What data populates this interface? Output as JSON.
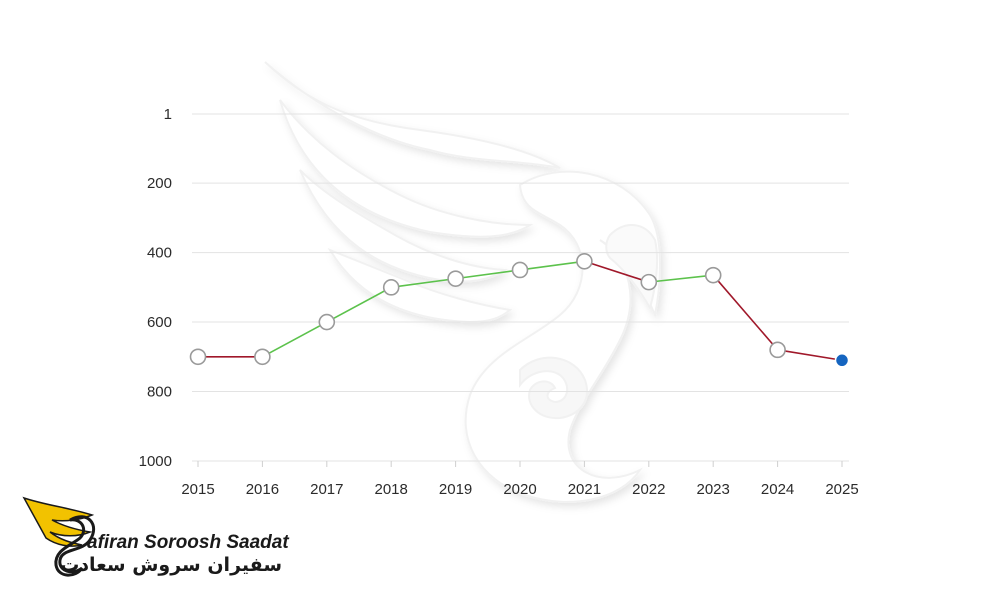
{
  "chart_data": {
    "type": "line",
    "x": [
      "2015",
      "2016",
      "2017",
      "2018",
      "2019",
      "2020",
      "2021",
      "2022",
      "2023",
      "2024",
      "2025"
    ],
    "values": [
      700,
      700,
      600,
      500,
      475,
      450,
      425,
      485,
      465,
      680,
      710
    ],
    "ylim": [
      1,
      1000
    ],
    "y_inverted": true,
    "yticks": [
      "1",
      "200",
      "400",
      "600",
      "800",
      "1000"
    ],
    "grid": "horizontal",
    "rising_color": "#5cc24c",
    "falling_color": "#a0182a",
    "marker_color": "#9a9a9a",
    "current_point_color": "#1565c0"
  },
  "logo": {
    "name_en": "afiran Soroosh Saadat",
    "name_fa": "سفیران سروش سعادت",
    "accent": "#f2c200"
  },
  "watermark": {
    "icon": "swan-wing-watermark-icon"
  }
}
